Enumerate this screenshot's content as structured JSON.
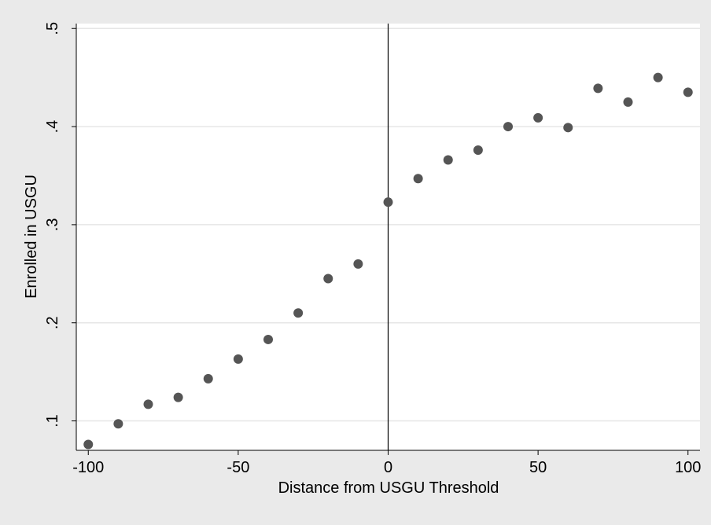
{
  "chart_data": {
    "type": "scatter",
    "xlabel": "Distance from USGU Threshold",
    "ylabel": "Enrolled in USGU",
    "xlim": [
      -104,
      104
    ],
    "ylim": [
      0.07,
      0.505
    ],
    "xticks": [
      -100,
      -50,
      0,
      50,
      100
    ],
    "xtick_labels": [
      "-100",
      "-50",
      "0",
      "50",
      "100"
    ],
    "yticks": [
      0.1,
      0.2,
      0.3,
      0.4,
      0.5
    ],
    "ytick_labels": [
      ".1",
      ".2",
      ".3",
      ".4",
      ".5"
    ],
    "grid": true,
    "vline_x": 0,
    "series": [
      {
        "x": [
          -100,
          -90,
          -80,
          -70,
          -60,
          -50,
          -40,
          -30,
          -20,
          -10,
          0,
          10,
          20,
          30,
          40,
          50,
          60,
          70,
          80,
          90,
          100
        ],
        "y": [
          0.076,
          0.097,
          0.117,
          0.124,
          0.143,
          0.163,
          0.183,
          0.21,
          0.245,
          0.26,
          0.323,
          0.347,
          0.366,
          0.376,
          0.4,
          0.409,
          0.399,
          0.439,
          0.425,
          0.45,
          0.435
        ]
      }
    ],
    "colors": {
      "background": "#eaeaea",
      "plot_bg": "#ffffff",
      "marker": "#555555",
      "grid": "#e6e6e6"
    }
  }
}
